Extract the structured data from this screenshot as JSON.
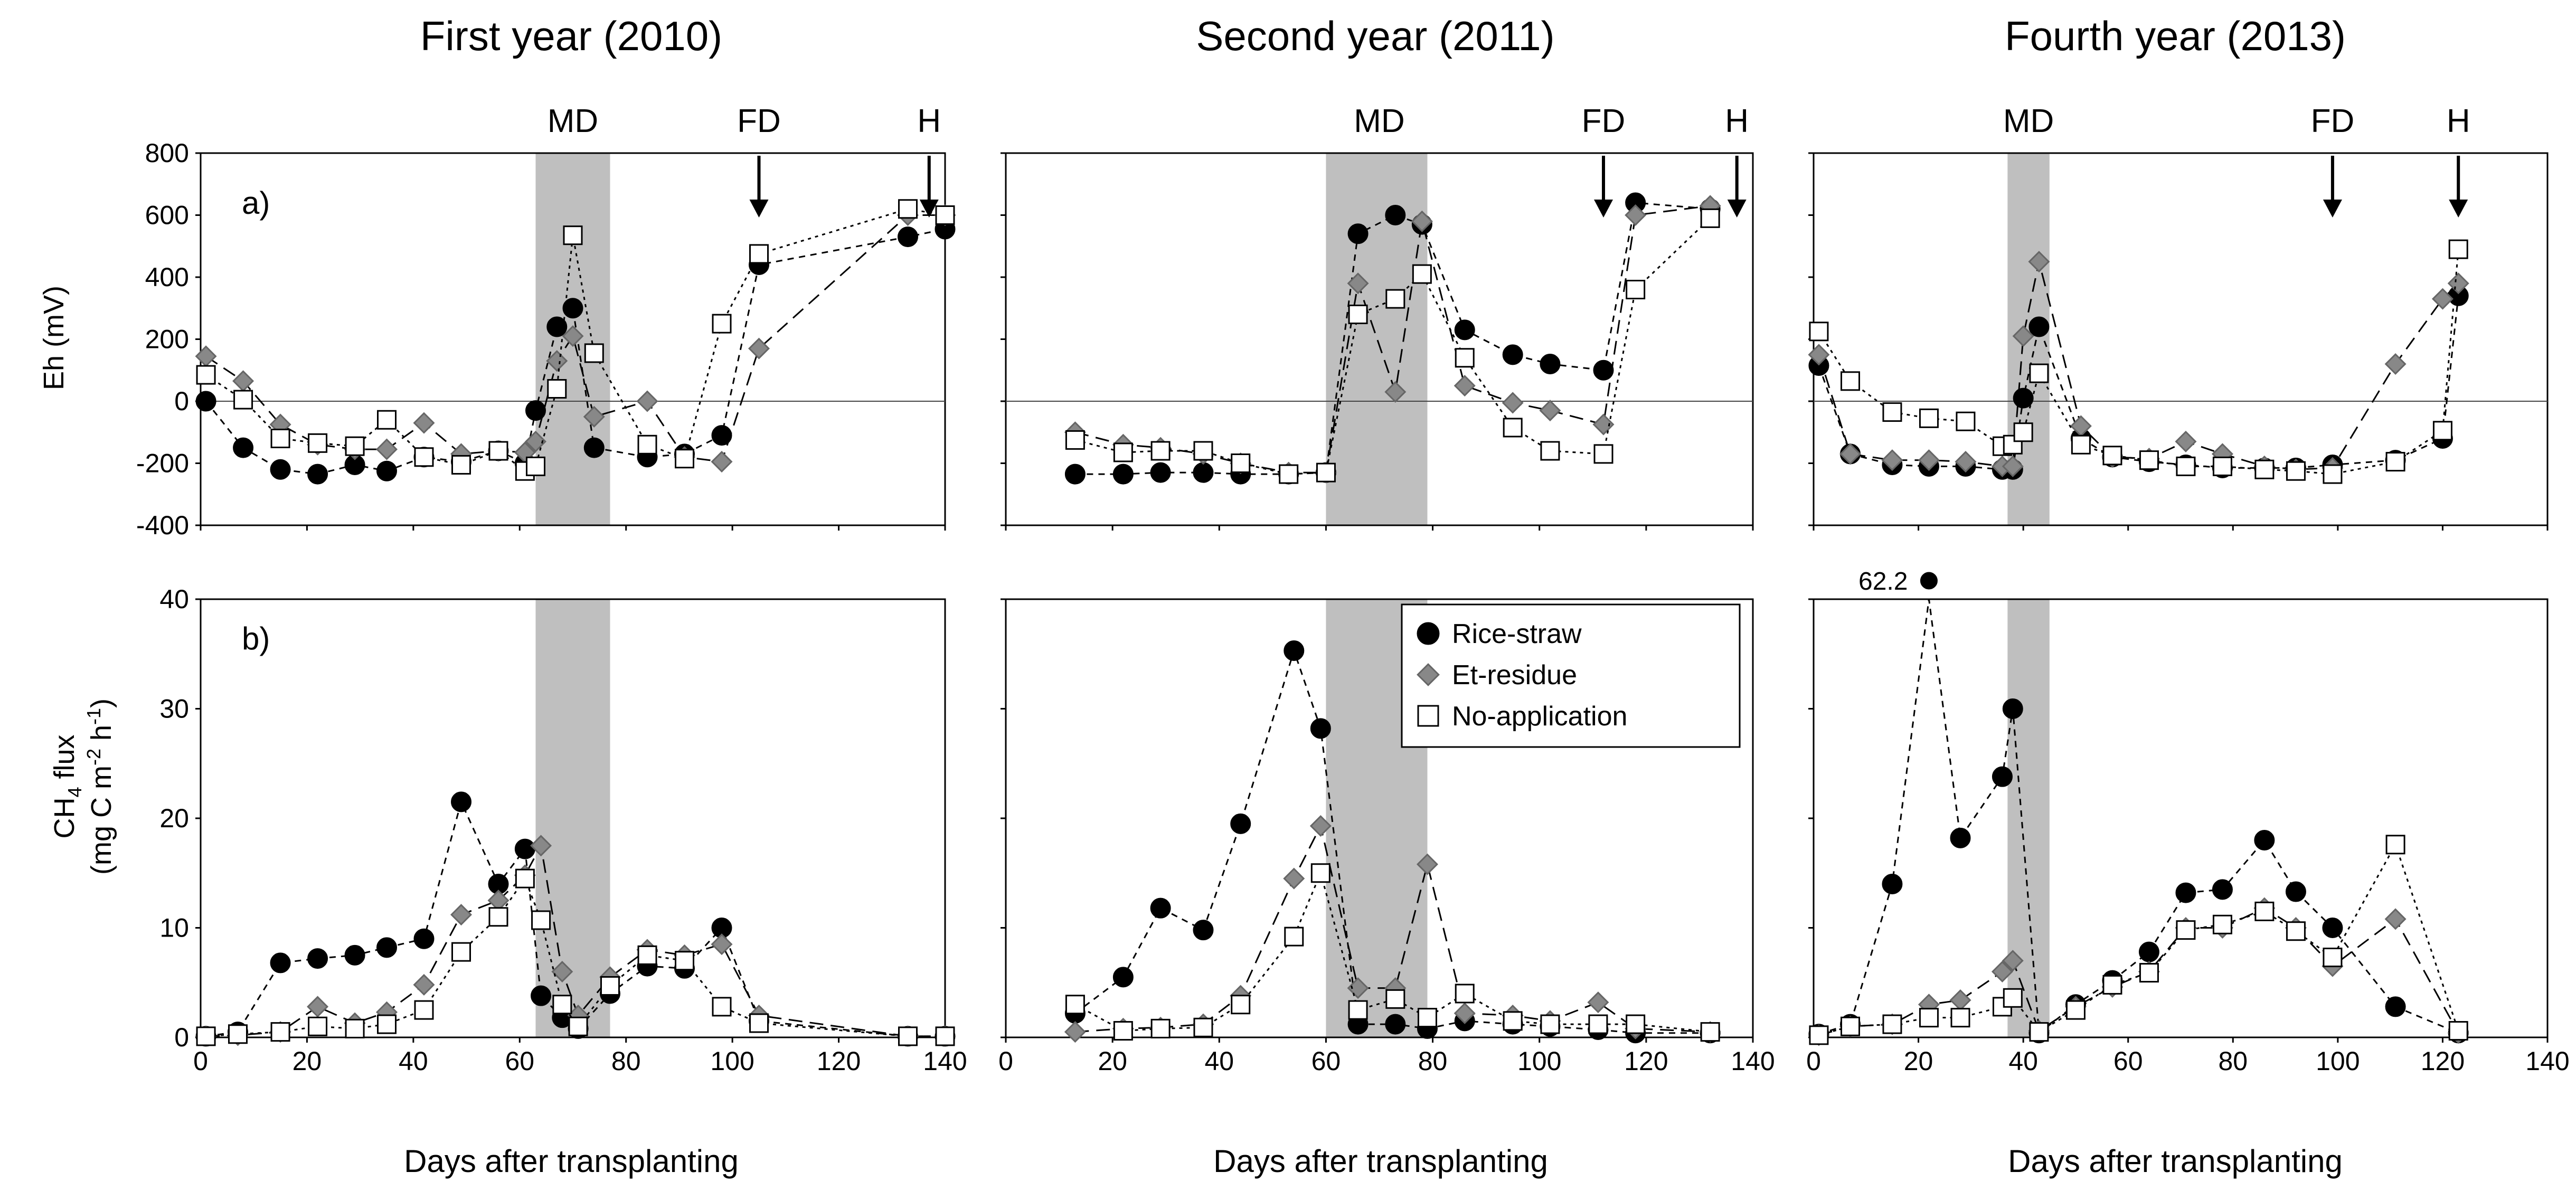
{
  "figure": {
    "columns": [
      "First year (2010)",
      "Second year (2011)",
      "Fourth year (2013)"
    ],
    "xlabel": "Days after transplanting",
    "eh_ylabel": "Eh (mV)",
    "flux_ylabel_line1": "CH",
    "flux_ylabel_sub": "4",
    "flux_ylabel_rest": " flux",
    "flux_ylabel_line2a": "(mg C m",
    "flux_ylabel_sup1": "-2",
    "flux_ylabel_line2b": " h",
    "flux_ylabel_sup2": "-1",
    "flux_ylabel_line2c": ")",
    "panel_a": "a)",
    "panel_b": "b)",
    "events": {
      "md": "MD",
      "fd": "FD",
      "h": "H"
    },
    "legend": [
      "Rice-straw",
      "Et-residue",
      "No-application"
    ],
    "outlier_label": "62.2",
    "colors": {
      "rice": "#000000",
      "et": "#888888",
      "noapp": "#ffffff",
      "shade": "#bfbfbf"
    }
  },
  "chart_data": [
    {
      "type": "line",
      "title": "First year (2010)",
      "panel": "a)",
      "ylabel": "Eh (mV)",
      "xlabel": "",
      "xlim": [
        0,
        140
      ],
      "ylim": [
        -400,
        800
      ],
      "x_ticks": [
        0,
        20,
        40,
        60,
        80,
        100,
        120,
        140
      ],
      "y_ticks": [
        -400,
        -200,
        0,
        200,
        400,
        600,
        800
      ],
      "shade": [
        63,
        77
      ],
      "events": [
        {
          "label": "MD",
          "x": 70,
          "arrow": false
        },
        {
          "label": "FD",
          "x": 105,
          "arrow": true
        },
        {
          "label": "H",
          "x": 137,
          "arrow": true
        }
      ],
      "series": [
        {
          "name": "Rice-straw",
          "x": [
            1,
            8,
            15,
            22,
            29,
            35,
            42,
            49,
            56,
            61,
            63,
            67,
            70,
            74,
            84,
            91,
            98,
            105,
            133,
            140
          ],
          "y": [
            0,
            -150,
            -220,
            -235,
            -205,
            -225,
            -180,
            -195,
            -160,
            -200,
            -30,
            240,
            300,
            -150,
            -180,
            -170,
            -110,
            440,
            530,
            555
          ]
        },
        {
          "name": "Et-residue",
          "x": [
            1,
            8,
            15,
            22,
            29,
            35,
            42,
            49,
            56,
            61,
            63,
            67,
            70,
            74,
            84,
            91,
            98,
            105,
            133,
            140
          ],
          "y": [
            145,
            65,
            -75,
            -140,
            -155,
            -155,
            -70,
            -170,
            -160,
            -165,
            -130,
            130,
            210,
            -50,
            0,
            -180,
            -195,
            170,
            600,
            600
          ]
        },
        {
          "name": "No-application",
          "x": [
            1,
            8,
            15,
            22,
            29,
            35,
            42,
            49,
            56,
            61,
            63,
            67,
            70,
            74,
            84,
            91,
            98,
            105,
            133,
            140
          ],
          "y": [
            85,
            5,
            -120,
            -135,
            -145,
            -60,
            -180,
            -205,
            -160,
            -225,
            -210,
            40,
            535,
            155,
            -140,
            -185,
            250,
            475,
            620,
            600
          ]
        }
      ]
    },
    {
      "type": "line",
      "title": "First year (2010)",
      "panel": "b)",
      "ylabel": "CH4 flux (mg C m-2 h-1)",
      "xlabel": "Days after transplanting",
      "xlim": [
        0,
        140
      ],
      "ylim": [
        0,
        40
      ],
      "x_ticks": [
        0,
        20,
        40,
        60,
        80,
        100,
        120,
        140
      ],
      "y_ticks": [
        0,
        10,
        20,
        30,
        40
      ],
      "shade": [
        63,
        77
      ],
      "series": [
        {
          "name": "Rice-straw",
          "x": [
            1,
            7,
            15,
            22,
            29,
            35,
            42,
            49,
            56,
            61,
            64,
            68,
            71,
            77,
            84,
            91,
            98,
            105,
            133,
            140
          ],
          "y": [
            0.1,
            0.5,
            6.8,
            7.2,
            7.5,
            8.2,
            9.0,
            21.5,
            14.0,
            17.2,
            3.8,
            1.8,
            0.8,
            4.0,
            6.5,
            6.3,
            10.0,
            1.5,
            0.1,
            0.1
          ]
        },
        {
          "name": "Et-residue",
          "x": [
            1,
            7,
            15,
            22,
            29,
            35,
            42,
            49,
            56,
            61,
            64,
            68,
            71,
            77,
            84,
            91,
            98,
            105,
            133,
            140
          ],
          "y": [
            0.1,
            0.2,
            0.5,
            2.8,
            1.3,
            2.3,
            4.8,
            11.2,
            12.5,
            14.8,
            17.5,
            6.0,
            2.0,
            5.5,
            8.0,
            7.5,
            8.5,
            2.0,
            0.1,
            0.1
          ]
        },
        {
          "name": "No-application",
          "x": [
            1,
            7,
            15,
            22,
            29,
            35,
            42,
            49,
            56,
            61,
            64,
            68,
            71,
            77,
            84,
            91,
            98,
            105,
            133,
            140
          ],
          "y": [
            0.1,
            0.3,
            0.5,
            1.0,
            0.8,
            1.2,
            2.5,
            7.8,
            11.0,
            14.5,
            10.7,
            3.0,
            1.0,
            4.7,
            7.5,
            7.0,
            2.8,
            1.3,
            0.1,
            0.1
          ]
        }
      ]
    },
    {
      "type": "line",
      "title": "Second year (2011)",
      "panel": "",
      "ylabel": "Eh (mV)",
      "xlabel": "",
      "xlim": [
        0,
        140
      ],
      "ylim": [
        -400,
        800
      ],
      "x_ticks": [
        0,
        20,
        40,
        60,
        80,
        100,
        120,
        140
      ],
      "y_ticks": [
        -400,
        -200,
        0,
        200,
        400,
        600,
        800
      ],
      "shade": [
        60,
        79
      ],
      "events": [
        {
          "label": "MD",
          "x": 70,
          "arrow": false
        },
        {
          "label": "FD",
          "x": 112,
          "arrow": true
        },
        {
          "label": "H",
          "x": 137,
          "arrow": true
        }
      ],
      "series": [
        {
          "name": "Rice-straw",
          "x": [
            13,
            22,
            29,
            37,
            44,
            53,
            60,
            66,
            73,
            78,
            86,
            95,
            102,
            112,
            118,
            132
          ],
          "y": [
            -235,
            -235,
            -230,
            -230,
            -235,
            -235,
            -230,
            540,
            600,
            570,
            230,
            150,
            120,
            100,
            640,
            620
          ]
        },
        {
          "name": "Et-residue",
          "x": [
            13,
            22,
            29,
            37,
            44,
            53,
            60,
            66,
            73,
            78,
            86,
            95,
            102,
            112,
            118,
            132
          ],
          "y": [
            -100,
            -140,
            -150,
            -170,
            -200,
            -230,
            -230,
            380,
            30,
            580,
            50,
            -5,
            -30,
            -75,
            600,
            630
          ]
        },
        {
          "name": "No-application",
          "x": [
            13,
            22,
            29,
            37,
            44,
            53,
            60,
            66,
            73,
            78,
            86,
            95,
            102,
            112,
            118,
            132
          ],
          "y": [
            -125,
            -165,
            -160,
            -160,
            -200,
            -235,
            -230,
            280,
            330,
            410,
            140,
            -85,
            -160,
            -170,
            360,
            590
          ]
        }
      ]
    },
    {
      "type": "line",
      "title": "Second year (2011)",
      "panel": "",
      "ylabel": "CH4 flux (mg C m-2 h-1)",
      "xlabel": "Days after transplanting",
      "xlim": [
        0,
        140
      ],
      "ylim": [
        0,
        40
      ],
      "x_ticks": [
        0,
        20,
        40,
        60,
        80,
        100,
        120,
        140
      ],
      "y_ticks": [
        0,
        10,
        20,
        30,
        40
      ],
      "shade": [
        60,
        79
      ],
      "series": [
        {
          "name": "Rice-straw",
          "x": [
            13,
            22,
            29,
            37,
            44,
            54,
            59,
            66,
            73,
            79,
            86,
            95,
            102,
            111,
            118,
            132
          ],
          "y": [
            2.2,
            5.5,
            11.8,
            9.8,
            19.5,
            35.3,
            28.2,
            1.2,
            1.2,
            0.8,
            1.5,
            1.2,
            1.0,
            0.7,
            0.4,
            0.4
          ]
        },
        {
          "name": "Et-residue",
          "x": [
            13,
            22,
            29,
            37,
            44,
            54,
            59,
            66,
            73,
            79,
            86,
            95,
            102,
            111,
            118,
            132
          ],
          "y": [
            0.5,
            0.8,
            0.9,
            1.2,
            3.8,
            14.5,
            19.3,
            4.5,
            4.5,
            15.8,
            2.2,
            2.0,
            1.5,
            3.2,
            0.8,
            0.5
          ]
        },
        {
          "name": "No-application",
          "x": [
            13,
            22,
            29,
            37,
            44,
            54,
            59,
            66,
            73,
            79,
            86,
            95,
            102,
            111,
            118,
            132
          ],
          "y": [
            3.0,
            0.6,
            0.8,
            0.9,
            3.0,
            9.2,
            15.0,
            2.5,
            3.5,
            1.8,
            4.0,
            1.5,
            1.2,
            1.2,
            1.2,
            0.5
          ]
        }
      ]
    },
    {
      "type": "line",
      "title": "Fourth year (2013)",
      "panel": "",
      "ylabel": "Eh (mV)",
      "xlabel": "",
      "xlim": [
        0,
        140
      ],
      "ylim": [
        -400,
        800
      ],
      "x_ticks": [
        0,
        20,
        40,
        60,
        80,
        100,
        120,
        140
      ],
      "y_ticks": [
        -400,
        -200,
        0,
        200,
        400,
        600,
        800
      ],
      "shade": [
        37,
        45
      ],
      "events": [
        {
          "label": "MD",
          "x": 41,
          "arrow": false
        },
        {
          "label": "FD",
          "x": 99,
          "arrow": true
        },
        {
          "label": "H",
          "x": 123,
          "arrow": true
        }
      ],
      "series": [
        {
          "name": "Rice-straw",
          "x": [
            1,
            7,
            15,
            22,
            29,
            36,
            38,
            40,
            43,
            51,
            57,
            64,
            71,
            78,
            86,
            92,
            99,
            111,
            120,
            123
          ],
          "y": [
            115,
            -170,
            -205,
            -210,
            -210,
            -220,
            -220,
            10,
            240,
            -120,
            -180,
            -195,
            -205,
            -215,
            -215,
            -215,
            -205,
            -190,
            -120,
            340
          ]
        },
        {
          "name": "Et-residue",
          "x": [
            1,
            7,
            15,
            22,
            29,
            36,
            38,
            40,
            43,
            51,
            57,
            64,
            71,
            78,
            86,
            92,
            99,
            111,
            120,
            123
          ],
          "y": [
            150,
            -170,
            -190,
            -190,
            -195,
            -210,
            -210,
            210,
            450,
            -80,
            -180,
            -185,
            -130,
            -170,
            -210,
            -220,
            -215,
            120,
            330,
            380
          ]
        },
        {
          "name": "No-application",
          "x": [
            1,
            7,
            15,
            22,
            29,
            36,
            38,
            40,
            43,
            51,
            57,
            64,
            71,
            78,
            86,
            92,
            99,
            111,
            120,
            123
          ],
          "y": [
            225,
            65,
            -35,
            -55,
            -65,
            -145,
            -140,
            -100,
            90,
            -140,
            -175,
            -190,
            -210,
            -210,
            -220,
            -225,
            -235,
            -195,
            -95,
            490
          ]
        }
      ]
    },
    {
      "type": "line",
      "title": "Fourth year (2013)",
      "panel": "",
      "ylabel": "CH4 flux (mg C m-2 h-1)",
      "xlabel": "Days after transplanting",
      "xlim": [
        0,
        140
      ],
      "ylim": [
        0,
        40
      ],
      "x_ticks": [
        0,
        20,
        40,
        60,
        80,
        100,
        120,
        140
      ],
      "y_ticks": [
        0,
        10,
        20,
        30,
        40
      ],
      "shade": [
        37,
        45
      ],
      "annotation": {
        "text": "62.2",
        "x": 22,
        "y": 62.2
      },
      "series": [
        {
          "name": "Rice-straw",
          "x": [
            1,
            7,
            15,
            22,
            28,
            36,
            38,
            43,
            50,
            57,
            64,
            71,
            78,
            86,
            92,
            99,
            111,
            123
          ],
          "y": [
            0.3,
            1.2,
            14.0,
            62.2,
            18.2,
            23.8,
            30.0,
            0.4,
            3.0,
            5.2,
            7.8,
            13.2,
            13.5,
            18.0,
            13.3,
            10.0,
            2.8,
            0.4
          ]
        },
        {
          "name": "Et-residue",
          "x": [
            1,
            7,
            15,
            22,
            28,
            36,
            38,
            43,
            50,
            57,
            64,
            71,
            78,
            86,
            92,
            99,
            111,
            123
          ],
          "y": [
            0.2,
            1.0,
            1.2,
            3.0,
            3.4,
            6.0,
            7.0,
            0.6,
            2.8,
            4.6,
            6.0,
            10.0,
            10.0,
            11.8,
            10.0,
            6.5,
            10.8,
            0.4
          ]
        },
        {
          "name": "No-application",
          "x": [
            1,
            7,
            15,
            22,
            28,
            36,
            38,
            43,
            50,
            57,
            64,
            71,
            78,
            86,
            92,
            99,
            111,
            123
          ],
          "y": [
            0.2,
            1.0,
            1.2,
            1.8,
            1.8,
            2.8,
            3.6,
            0.5,
            2.5,
            4.8,
            5.9,
            9.8,
            10.3,
            11.5,
            9.7,
            7.3,
            17.6,
            0.6
          ]
        }
      ]
    }
  ]
}
